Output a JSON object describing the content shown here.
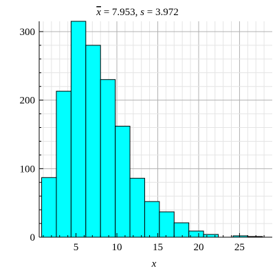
{
  "chart_data": {
    "type": "bar",
    "title": {
      "mean_symbol": "x",
      "mean_text": " = 7.953,  ",
      "sd_symbol": "s",
      "sd_text": " = 3.972"
    },
    "xlabel": "x",
    "ylabel": "",
    "xlim": [
      0.5,
      29
    ],
    "ylim": [
      0,
      315
    ],
    "x_ticks": [
      5,
      10,
      15,
      20,
      25
    ],
    "y_ticks": [
      0,
      100,
      200,
      300
    ],
    "bin_edges": [
      0.8,
      2.6,
      4.4,
      6.2,
      8.0,
      9.8,
      11.6,
      13.4,
      15.2,
      17.0,
      18.8,
      20.6,
      22.4,
      24.2,
      26.0,
      27.8
    ],
    "values": [
      87,
      213,
      315,
      280,
      230,
      162,
      86,
      52,
      37,
      21,
      9,
      4,
      0,
      2,
      1
    ],
    "bar_color": "#00ffff",
    "bar_edge_color": "#000000",
    "grid": true
  }
}
